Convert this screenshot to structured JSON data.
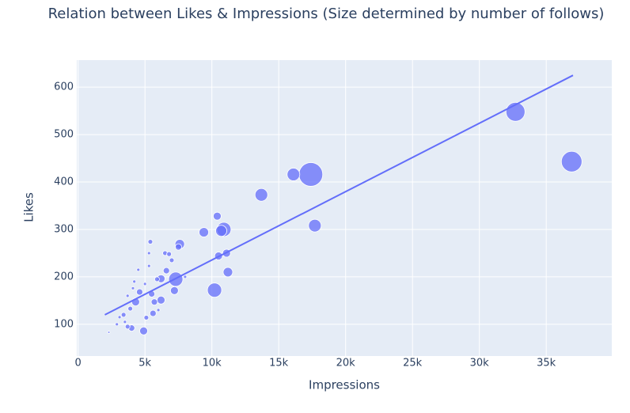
{
  "chart_data": {
    "type": "scatter",
    "title": "Relation between Likes & Impressions (Size determined by number of follows)",
    "x_label": "Impressions",
    "y_label": "Likes",
    "color": "#636efa",
    "x": [
      32700,
      36900,
      17400,
      16100,
      13700,
      17700,
      10900,
      10700,
      10400,
      9400,
      10200,
      11200,
      11100,
      10500,
      7300,
      7600,
      7500,
      7200,
      6600,
      6200,
      6200,
      5700,
      5500,
      5600,
      5400,
      6500,
      6800,
      7000,
      4900,
      5100,
      4300,
      4000,
      4600,
      3700,
      3900,
      3400,
      3100,
      2900,
      2300,
      4500,
      5300,
      5300,
      4200,
      3700,
      5900,
      5000,
      4100,
      3500,
      6000,
      8000
    ],
    "y": [
      548,
      443,
      416,
      416,
      373,
      308,
      300,
      297,
      328,
      294,
      172,
      210,
      250,
      244,
      195,
      269,
      263,
      171,
      213,
      196,
      151,
      147,
      164,
      123,
      274,
      250,
      248,
      235,
      86,
      114,
      147,
      92,
      168,
      95,
      133,
      120,
      115,
      100,
      83,
      215,
      250,
      223,
      190,
      160,
      195,
      185,
      176,
      105,
      130,
      200
    ],
    "sizes": [
      144,
      169,
      225,
      64,
      64,
      64,
      81,
      49,
      25,
      36,
      81,
      36,
      25,
      25,
      81,
      36,
      16,
      25,
      16,
      25,
      25,
      16,
      16,
      16,
      9,
      9,
      9,
      9,
      25,
      9,
      25,
      16,
      16,
      9,
      9,
      9,
      4,
      4,
      2,
      4,
      4,
      4,
      4,
      4,
      9,
      4,
      4,
      4,
      4,
      4
    ],
    "trendline": {
      "x": [
        2000,
        37000
      ],
      "y": [
        120,
        625
      ]
    },
    "xlim": [
      -100,
      39900
    ],
    "ylim": [
      33,
      657
    ],
    "xticks": [
      {
        "value": 0,
        "label": "0"
      },
      {
        "value": 5000,
        "label": "5k"
      },
      {
        "value": 10000,
        "label": "10k"
      },
      {
        "value": 15000,
        "label": "15k"
      },
      {
        "value": 20000,
        "label": "20k"
      },
      {
        "value": 25000,
        "label": "25k"
      },
      {
        "value": 30000,
        "label": "30k"
      },
      {
        "value": 35000,
        "label": "35k"
      }
    ],
    "yticks": [
      100,
      200,
      300,
      400,
      500,
      600
    ],
    "grid": true
  }
}
